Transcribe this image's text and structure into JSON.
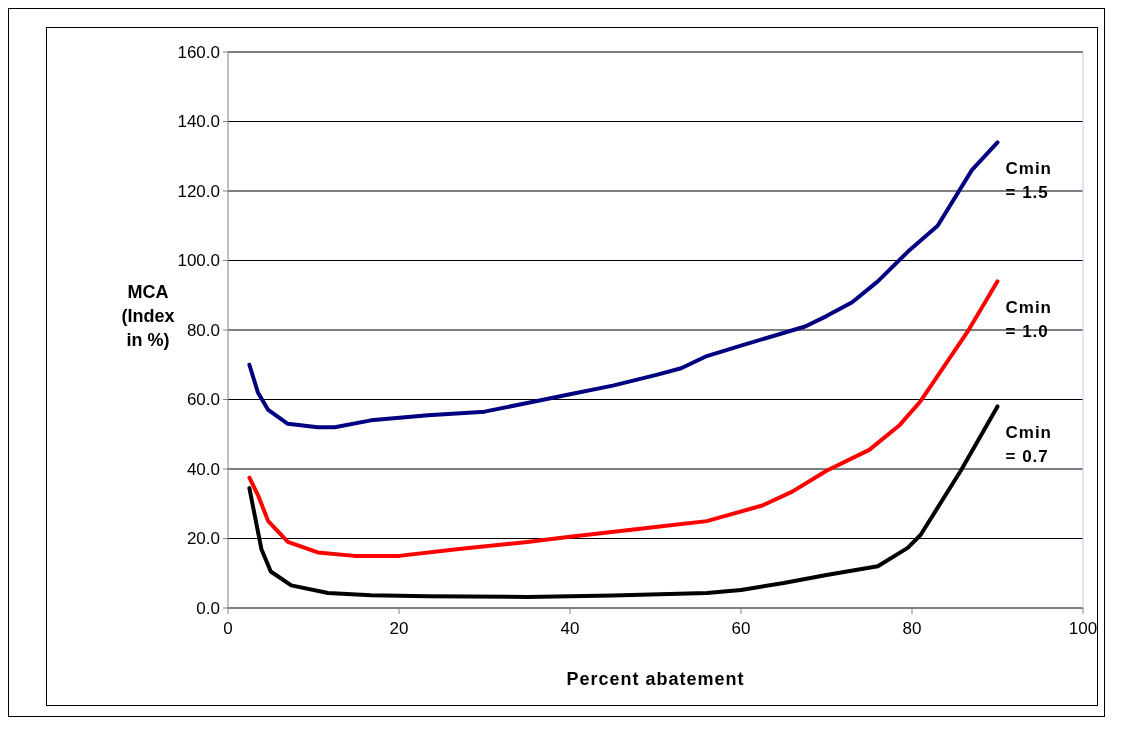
{
  "chart_data": {
    "type": "line",
    "xlabel": "Percent abatement",
    "ylabel": "MCA (Index in %)",
    "xlim": [
      0,
      100
    ],
    "xticks": [
      0,
      20,
      40,
      60,
      80,
      100
    ],
    "ylim": [
      0,
      160
    ],
    "yticks": [
      {
        "value": 0,
        "label": "0.0"
      },
      {
        "value": 20,
        "label": "20.0"
      },
      {
        "value": 40,
        "label": "40.0"
      },
      {
        "value": 60,
        "label": "60.0"
      },
      {
        "value": 80,
        "label": "80.0"
      },
      {
        "value": 100,
        "label": "100.0"
      },
      {
        "value": 120,
        "label": "120.0"
      },
      {
        "value": 140,
        "label": "140.0"
      },
      {
        "value": 160,
        "label": "160.0"
      }
    ],
    "grid": "y",
    "legend": false,
    "marker": "none",
    "line_style": "solid",
    "series": [
      {
        "name": "Cmin = 1.5",
        "color": "#000080",
        "x": [
          2.5,
          3.5,
          4.7,
          7,
          10.5,
          12.5,
          16.7,
          23.4,
          30,
          35,
          40,
          45,
          50,
          53,
          56,
          60,
          67.5,
          70,
          73,
          76,
          79.5,
          83,
          87,
          90
        ],
        "values": [
          70,
          62,
          57,
          53,
          52,
          52,
          54,
          55.5,
          56.5,
          59,
          61.5,
          64,
          67,
          69,
          72.5,
          75.5,
          81,
          84,
          88,
          94,
          102.5,
          110,
          126,
          134
        ]
      },
      {
        "name": "Cmin = 1.0",
        "color": "#ff0000",
        "x": [
          2.5,
          3.5,
          4.7,
          7,
          10.5,
          14.8,
          20,
          27,
          35,
          40,
          50,
          56,
          62.5,
          66,
          70,
          75,
          78.5,
          81,
          86.5,
          90
        ],
        "values": [
          37.5,
          32.5,
          25,
          19,
          16,
          15,
          15,
          17,
          19,
          20.5,
          23.3,
          25,
          29.5,
          33.5,
          39.5,
          45.5,
          52.5,
          59.5,
          79.5,
          94
        ]
      },
      {
        "name": "Cmin = 0.7",
        "color": "#000000",
        "x": [
          2.5,
          3.1,
          3.9,
          5,
          7.4,
          11.7,
          16.7,
          23.4,
          35,
          45,
          56,
          60,
          65,
          70,
          76,
          79.5,
          81,
          85.7,
          90
        ],
        "values": [
          34.5,
          27,
          17,
          10.5,
          6.5,
          4.3,
          3.7,
          3.4,
          3.2,
          3.6,
          4.3,
          5.2,
          7.2,
          9.5,
          12,
          17.3,
          21,
          39.5,
          58
        ]
      }
    ]
  }
}
